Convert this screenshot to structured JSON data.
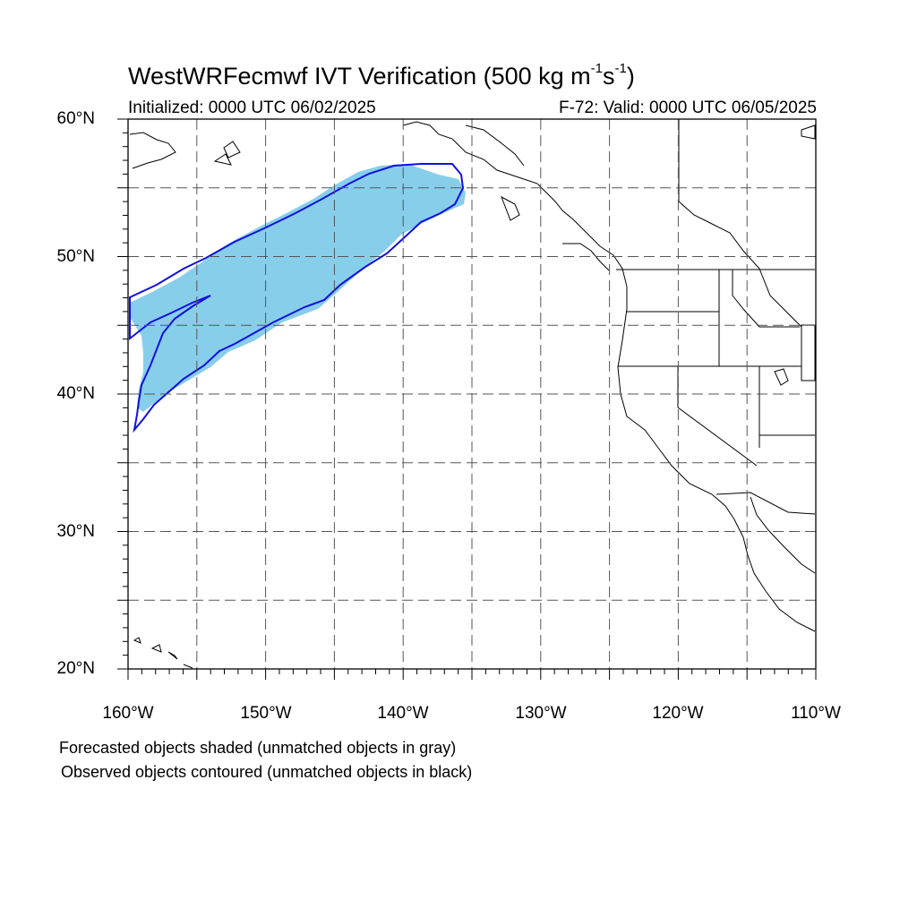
{
  "header": {
    "title_text": "WestWRFecmwf IVT Verification (500 kg m",
    "title_sup1": "-1",
    "title_mid": "s",
    "title_sup2": "-1",
    "title_end": ")",
    "initialized": "Initialized: 0000 UTC 06/02/2025",
    "valid": "F-72: Valid: 0000 UTC 06/05/2025"
  },
  "map": {
    "lon_range": [
      -160,
      -110
    ],
    "lat_range": [
      20,
      60
    ],
    "lat_labels": [
      "60°N",
      "50°N",
      "40°N",
      "30°N",
      "20°N"
    ],
    "lon_labels": [
      "160°W",
      "150°W",
      "140°W",
      "130°W",
      "120°W",
      "110°W"
    ],
    "forecast_fill_color": "#87ceeb",
    "observed_contour_color": "#1010e0",
    "coast_color": "#000000",
    "grid_style": "dashed"
  },
  "legend": {
    "line1": "Forecasted objects shaded (unmatched objects in gray)",
    "line2": "Observed objects contoured (unmatched objects in black)"
  }
}
